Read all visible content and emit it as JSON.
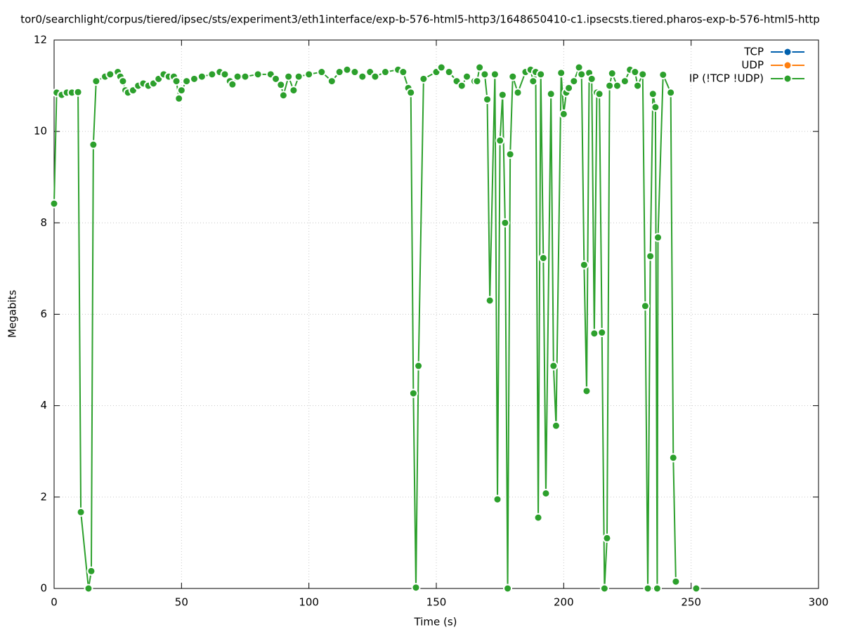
{
  "chart_data": {
    "type": "line",
    "title": "tor0/searchlight/corpus/tiered/ipsec/sts/experiment3/eth1interface/exp-b-576-html5-http3/1648650410-c1.ipsecsts.tiered.pharos-exp-b-576-html5-http",
    "xlabel": "Time (s)",
    "ylabel": "Megabits",
    "xlim": [
      0,
      300
    ],
    "xticks": [
      0,
      50,
      100,
      150,
      200,
      250,
      300
    ],
    "ylim": [
      0,
      12
    ],
    "yticks": [
      0,
      2,
      4,
      6,
      8,
      10,
      12
    ],
    "grid": true,
    "legend": "top-right",
    "x": [
      0,
      1,
      3,
      5,
      7,
      9.4,
      10.5,
      13.5,
      14.6,
      15.4,
      16.5,
      20,
      22,
      25,
      26,
      27,
      28,
      29,
      31,
      33,
      35,
      37,
      39,
      41,
      43,
      45,
      47,
      48,
      49,
      50,
      52,
      55,
      58,
      62,
      65,
      67,
      69,
      70,
      72,
      75,
      80,
      85,
      87,
      89,
      90,
      92,
      94,
      96,
      100,
      105,
      109,
      112,
      115,
      118,
      121,
      124,
      126,
      130,
      135,
      137,
      139,
      140,
      141,
      142,
      143,
      145,
      150,
      152,
      155,
      158,
      160,
      162,
      165,
      166,
      167,
      169,
      170,
      171,
      173,
      174,
      175,
      176,
      177,
      178,
      179,
      180,
      182,
      185,
      187,
      188,
      189,
      190,
      191,
      192,
      193,
      195,
      196,
      197,
      199,
      200,
      201,
      202,
      204,
      206,
      207,
      208,
      209,
      210,
      211,
      212,
      213,
      214,
      215,
      216,
      217,
      218,
      219,
      221,
      224,
      226,
      228,
      229,
      231,
      232,
      233,
      234,
      235,
      236,
      236.7,
      237,
      239,
      242,
      243,
      244,
      248,
      252
    ],
    "series": [
      {
        "name": "TCP",
        "color": "#0060ad",
        "values": [
          null,
          null,
          null,
          null,
          null,
          null,
          null,
          null,
          null,
          null,
          null,
          null,
          null,
          null,
          null,
          null,
          null,
          null,
          null,
          null,
          null,
          null,
          null,
          null,
          null,
          null,
          null,
          null,
          null,
          null,
          null,
          null,
          null,
          null,
          null,
          null,
          null,
          null,
          null,
          null,
          null,
          null,
          null,
          null,
          null,
          null,
          null,
          null,
          null,
          null,
          null,
          null,
          null,
          null,
          null,
          null,
          null,
          null,
          null,
          null,
          null,
          null,
          null,
          null,
          null,
          null,
          null,
          null,
          null,
          null,
          null,
          null,
          null,
          null,
          null,
          null,
          null,
          null,
          null,
          null,
          null,
          null,
          null,
          null,
          null,
          null,
          null,
          null,
          null,
          null,
          null,
          null,
          null,
          null,
          null,
          null,
          null,
          null,
          null,
          null,
          null,
          null,
          null,
          null,
          null,
          null,
          null,
          null,
          null,
          null,
          null,
          null,
          null,
          null,
          null,
          null,
          null,
          null,
          null,
          null,
          null,
          null,
          null,
          null,
          null,
          null,
          null,
          null,
          null,
          null,
          null,
          null,
          null,
          null,
          null,
          null
        ]
      },
      {
        "name": "UDP",
        "color": "#ff7f0e",
        "values": [
          null,
          null,
          null,
          null,
          null,
          null,
          null,
          null,
          null,
          null,
          null,
          null,
          null,
          null,
          null,
          null,
          null,
          null,
          null,
          null,
          null,
          null,
          null,
          null,
          null,
          null,
          null,
          null,
          null,
          null,
          null,
          null,
          null,
          null,
          null,
          null,
          null,
          null,
          null,
          null,
          null,
          null,
          null,
          null,
          null,
          null,
          null,
          null,
          null,
          null,
          null,
          null,
          null,
          null,
          null,
          null,
          null,
          null,
          null,
          null,
          null,
          null,
          null,
          null,
          null,
          null,
          null,
          null,
          null,
          null,
          null,
          null,
          null,
          null,
          null,
          null,
          null,
          null,
          null,
          null,
          null,
          null,
          null,
          null,
          null,
          null,
          null,
          null,
          null,
          null,
          null,
          null,
          null,
          null,
          null,
          null,
          null,
          null,
          null,
          null,
          null,
          null,
          null,
          null,
          null,
          null,
          null,
          null,
          null,
          null,
          null,
          null,
          null,
          null,
          null,
          null,
          null,
          null,
          null,
          null,
          null,
          null,
          null,
          null,
          null,
          null,
          null,
          null,
          null,
          null,
          null,
          null,
          null,
          null,
          null,
          null
        ]
      },
      {
        "name": "IP (!TCP  !UDP)",
        "color": "#2ca02c",
        "values": [
          8.42,
          10.85,
          10.8,
          10.85,
          10.85,
          10.86,
          1.67,
          0,
          0.38,
          9.71,
          11.1,
          11.2,
          11.25,
          11.3,
          11.2,
          11.1,
          10.9,
          10.85,
          10.9,
          11.0,
          11.05,
          11.0,
          11.05,
          11.15,
          11.25,
          11.2,
          11.2,
          11.1,
          10.72,
          10.9,
          11.1,
          11.15,
          11.2,
          11.25,
          11.3,
          11.25,
          11.1,
          11.03,
          11.2,
          11.2,
          11.25,
          11.25,
          11.15,
          11.02,
          10.79,
          11.2,
          10.9,
          11.2,
          11.25,
          11.3,
          11.1,
          11.3,
          11.35,
          11.3,
          11.2,
          11.3,
          11.2,
          11.3,
          11.35,
          11.3,
          10.95,
          10.85,
          4.27,
          0.02,
          4.87,
          11.15,
          11.3,
          11.4,
          11.3,
          11.1,
          11.0,
          11.2,
          11.1,
          11.1,
          11.4,
          11.25,
          10.7,
          6.3,
          11.25,
          1.95,
          9.8,
          10.8,
          8.0,
          0,
          9.5,
          11.2,
          10.85,
          11.3,
          11.35,
          11.1,
          11.3,
          1.55,
          11.25,
          7.23,
          2.08,
          10.82,
          4.87,
          3.56,
          11.28,
          10.38,
          10.85,
          10.95,
          11.1,
          11.4,
          11.25,
          7.08,
          4.32,
          11.28,
          11.15,
          5.58,
          10.85,
          10.82,
          5.6,
          0,
          1.1,
          11.0,
          11.27,
          11.0,
          11.1,
          11.35,
          11.3,
          11.0,
          11.25,
          6.18,
          0,
          7.27,
          10.82,
          10.53,
          0,
          7.68,
          11.24,
          10.85,
          2.86,
          0.15,
          null,
          0
        ]
      }
    ]
  }
}
